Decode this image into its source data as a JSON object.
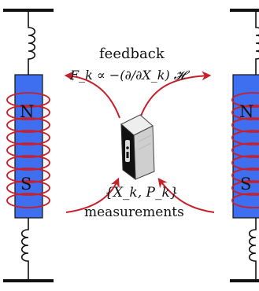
{
  "colors": {
    "magnet_fill": "#3d6ff0",
    "coil": "#c8202a",
    "arrow": "#c8202a",
    "spring": "#111111",
    "plate": "#111111"
  },
  "labels": {
    "feedback": "feedback",
    "control_law": "F_k ∝ −(∂/∂X_k) 𝓗",
    "measured_vars": "{X_k, P_k}",
    "measurements": "measurements"
  },
  "magnets": [
    {
      "north": "N",
      "south": "S"
    },
    {
      "north": "N",
      "south": "S"
    }
  ],
  "icons": {
    "controller": "computer-tower-icon"
  }
}
